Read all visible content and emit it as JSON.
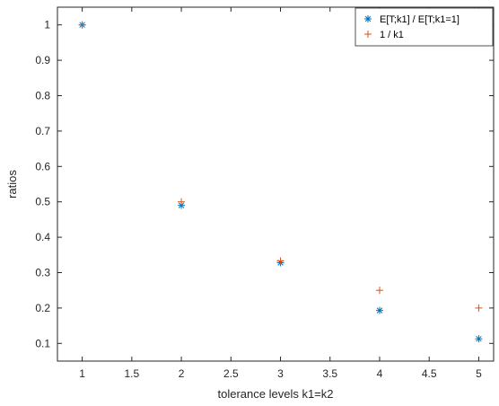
{
  "chart_data": {
    "type": "scatter",
    "xlabel": "tolerance levels k1=k2",
    "ylabel": "ratios",
    "xlim": [
      0.75,
      5.15
    ],
    "ylim": [
      0.05,
      1.05
    ],
    "xticks": [
      "1",
      "1.5",
      "2",
      "2.5",
      "3",
      "3.5",
      "4",
      "4.5",
      "5"
    ],
    "yticks": [
      "0.1",
      "0.2",
      "0.3",
      "0.4",
      "0.5",
      "0.6",
      "0.7",
      "0.8",
      "0.9",
      "1"
    ],
    "grid": false,
    "legend_position": "top-right",
    "series": [
      {
        "name": "E[T;k1] / E[T;k1=1]",
        "marker": "asterisk",
        "color": "#0072BD",
        "x": [
          1,
          2,
          3,
          4,
          5
        ],
        "y": [
          1.0,
          0.49,
          0.328,
          0.193,
          0.113
        ]
      },
      {
        "name": "1 / k1",
        "marker": "plus",
        "color": "#D95319",
        "x": [
          1,
          2,
          3,
          4,
          5
        ],
        "y": [
          1.0,
          0.5,
          0.333,
          0.25,
          0.2
        ]
      }
    ]
  }
}
